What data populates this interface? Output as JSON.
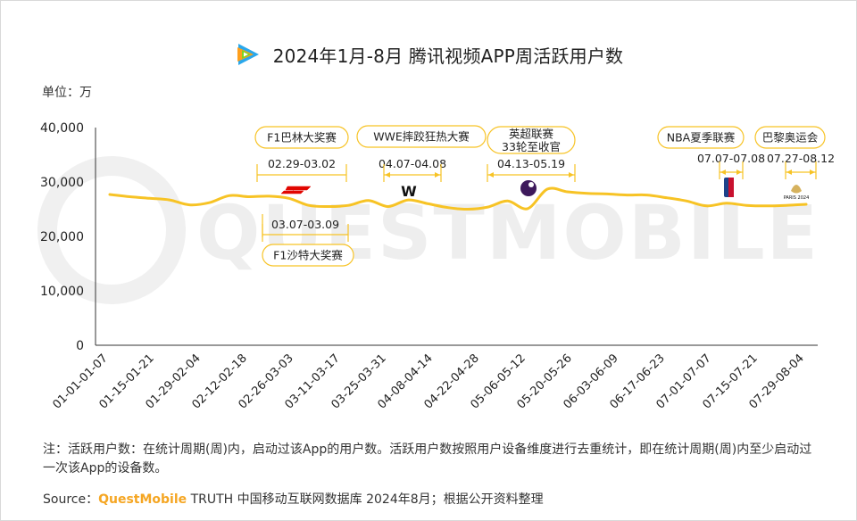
{
  "title": "2024年1月-8月 腾讯视频APP周活跃用户数",
  "unit_label": "单位：万",
  "watermark": "QUESTMOBILE",
  "note": "注：活跃用户数：在统计周期(周)内，启动过该App的用户数。活跃用户数按照用户设备维度进行去重统计，即在统计周期(周)内至少启动过一次该App的设备数。",
  "source": {
    "prefix": "Source：",
    "brand": "QuestMobile",
    "rest": " TRUTH 中国移动互联网数据库 2024年8月；根据公开资料整理"
  },
  "colors": {
    "line": "#F7C325",
    "annotation": "#F7C325",
    "axis": "#333333"
  },
  "chart_data": {
    "type": "line",
    "title": "2024年1月-8月 腾讯视频APP周活跃用户数",
    "ylabel": "单位：万",
    "ylim": [
      0,
      40000
    ],
    "yticks": [
      "0",
      "10,000",
      "20,000",
      "30,000",
      "40,000"
    ],
    "grid": false,
    "tick_labels": [
      "01-01-01-07",
      "01-15-01-21",
      "01-29-02-04",
      "02-12-02-18",
      "02-26-03-03",
      "03-11-03-17",
      "03-25-03-31",
      "04-08-04-14",
      "04-22-04-28",
      "05-06-05-12",
      "05-20-05-26",
      "06-03-06-09",
      "06-17-06-23",
      "07-01-07-07",
      "07-15-07-21",
      "07-29-08-04"
    ],
    "series": [
      {
        "values": [
          27700,
          27300,
          27000,
          26700,
          25800,
          26200,
          27500,
          27300,
          27400,
          27000,
          25700,
          25500,
          25700,
          26600,
          25500,
          26700,
          26000,
          25300,
          25000,
          25400,
          26500,
          25100,
          28700,
          28200,
          27900,
          27800,
          27600,
          27600,
          27100,
          26500,
          25600,
          26100,
          25700,
          25600,
          25700,
          25900
        ]
      }
    ],
    "annotations": [
      {
        "label": "F1巴林大奖赛",
        "range": "02.29-03.02",
        "icon": "f1-logo-icon"
      },
      {
        "label": "F1沙特大奖赛",
        "range": "03.07-03.09"
      },
      {
        "label": "WWE摔跤狂热大赛",
        "range": "04.07-04.08",
        "icon": "wwe-logo-icon"
      },
      {
        "label": "英超联赛\n33轮至收官",
        "range": "04.13-05.19",
        "icon": "premier-league-logo-icon"
      },
      {
        "label": "NBA夏季联赛",
        "range": "07.07-07.08",
        "icon": "nba-logo-icon"
      },
      {
        "label": "巴黎奥运会",
        "range": "07.27-08.12",
        "icon": "paris-2024-logo-icon"
      }
    ]
  }
}
